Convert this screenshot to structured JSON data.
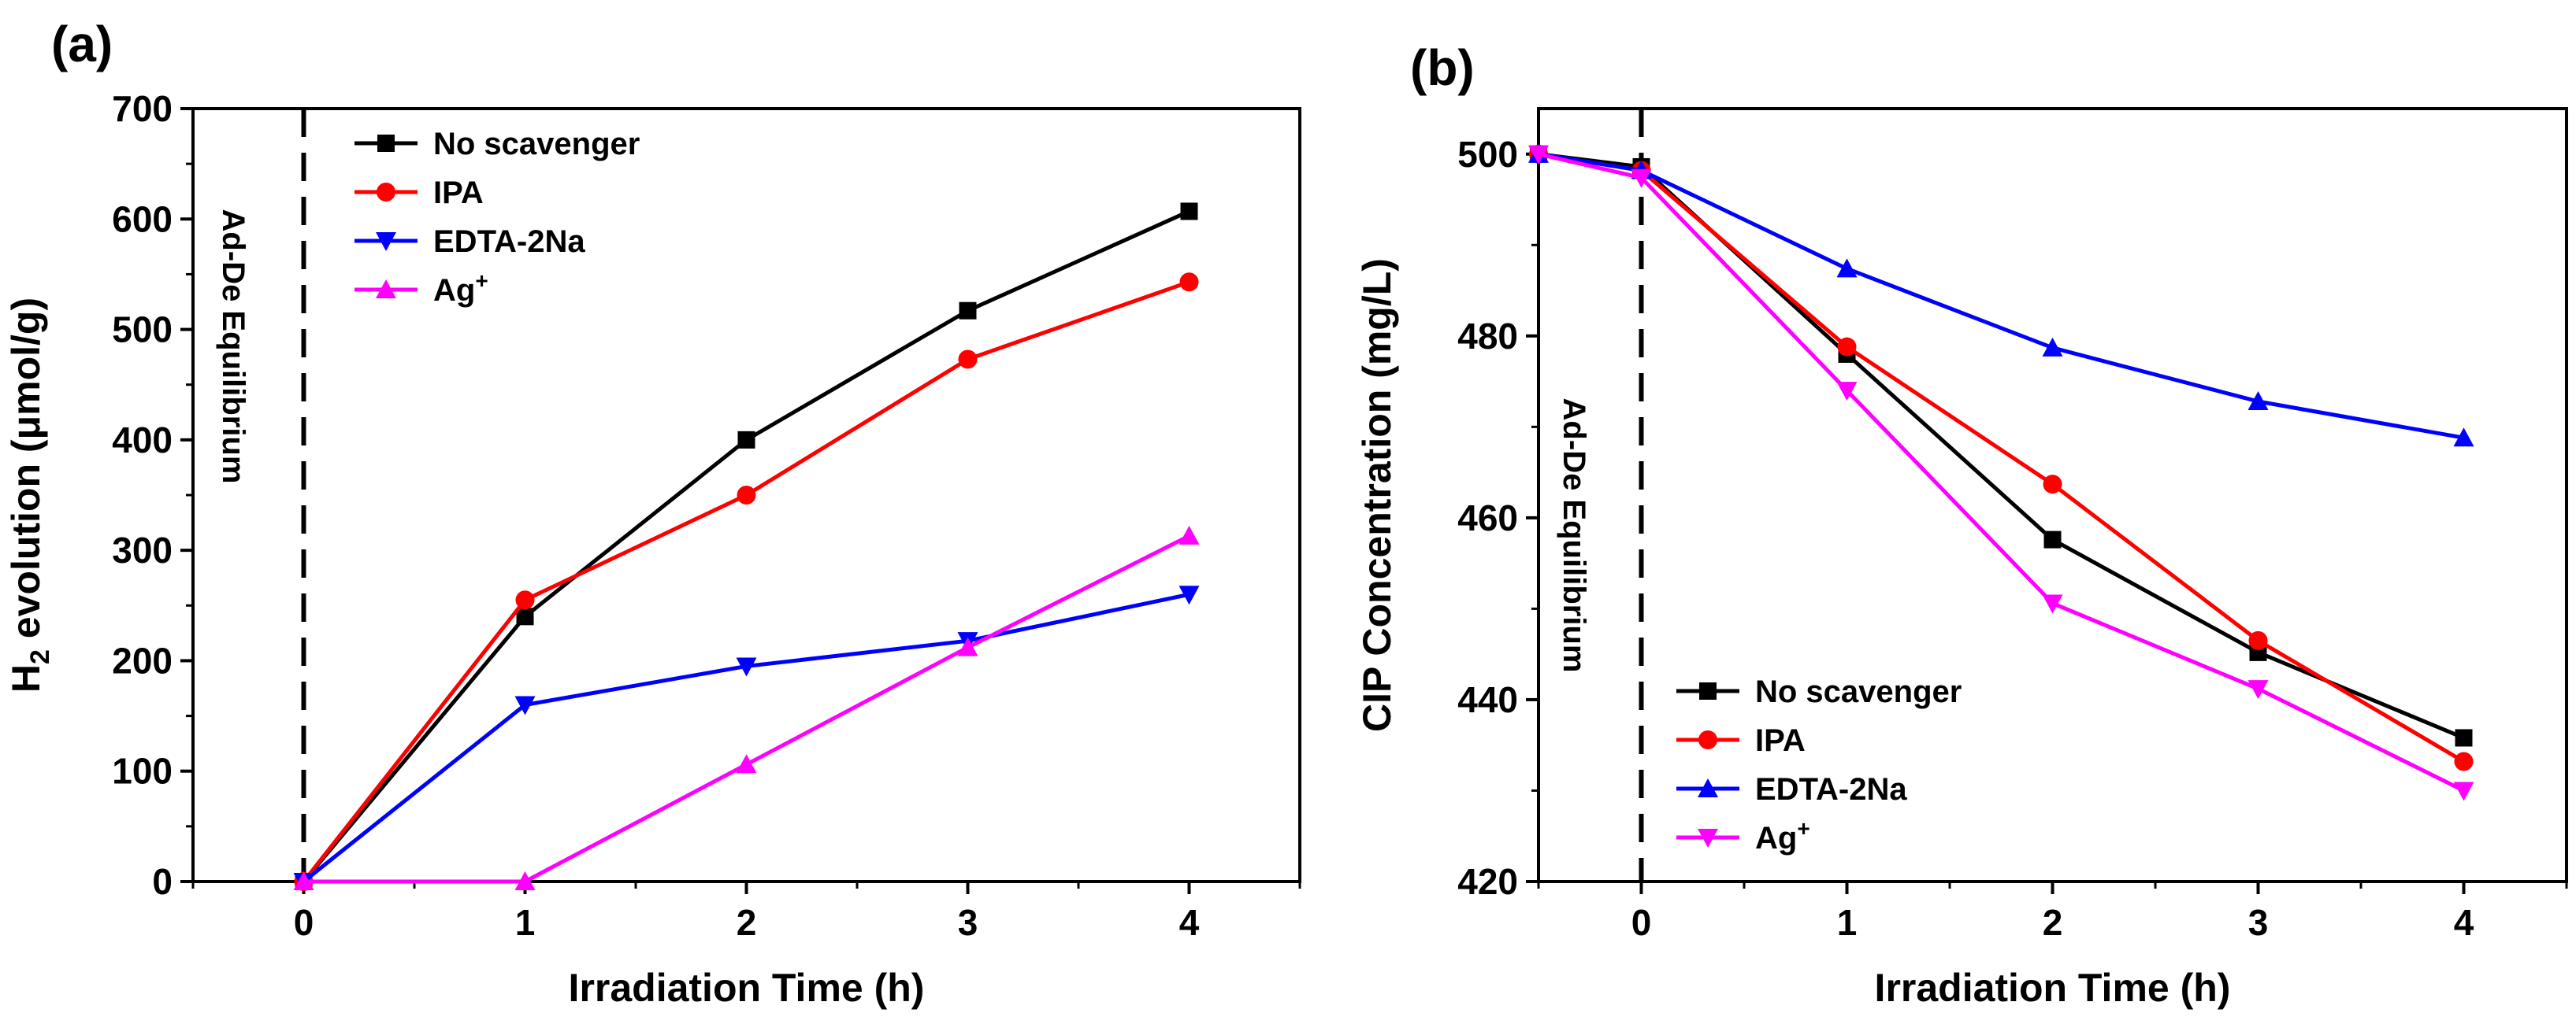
{
  "chart_data": [
    {
      "type": "line",
      "panel_label": "(a)",
      "title": "",
      "xlabel": "Irradiation Time (h)",
      "ylabel_main": "H",
      "ylabel_sub": "2",
      "ylabel_rest": " evolution (μmol/g)",
      "xlim": [
        -0.5,
        4.5
      ],
      "ylim": [
        0,
        700
      ],
      "x_ticks": [
        0,
        1,
        2,
        3,
        4
      ],
      "y_ticks": [
        0,
        100,
        200,
        300,
        400,
        500,
        600,
        700
      ],
      "x_tick_labels": [
        "0",
        "1",
        "2",
        "3",
        "4"
      ],
      "y_tick_labels": [
        "0",
        "100",
        "200",
        "300",
        "400",
        "500",
        "600",
        "700"
      ],
      "annotation": "Ad-De Equilibrium",
      "legend_position": "top-left",
      "series": [
        {
          "name": "No scavenger",
          "name_sup": "",
          "color": "#000000",
          "marker": "square",
          "x": [
            0,
            1,
            2,
            3,
            4
          ],
          "values": [
            0,
            240,
            400,
            517,
            607
          ]
        },
        {
          "name": "IPA",
          "name_sup": "",
          "color": "#ff0000",
          "marker": "circle",
          "x": [
            0,
            1,
            2,
            3,
            4
          ],
          "values": [
            0,
            255,
            350,
            473,
            543
          ]
        },
        {
          "name": "EDTA-2Na",
          "name_sup": "",
          "color": "#0000ff",
          "marker": "triangle-down",
          "x": [
            0,
            1,
            2,
            3,
            4
          ],
          "values": [
            0,
            160,
            195,
            218,
            260
          ]
        },
        {
          "name": "Ag",
          "name_sup": "+",
          "color": "#ff00ff",
          "marker": "triangle-up",
          "x": [
            0,
            1,
            2,
            3,
            4
          ],
          "values": [
            0,
            0,
            106,
            212,
            313
          ]
        }
      ]
    },
    {
      "type": "line",
      "panel_label": "(b)",
      "title": "",
      "xlabel": "Irradiation Time (h)",
      "ylabel_main": "CIP Concentration (mg/L)",
      "ylabel_sub": "",
      "ylabel_rest": "",
      "xlim": [
        -0.5,
        4.5
      ],
      "ylim": [
        420,
        505
      ],
      "x_ticks": [
        0,
        1,
        2,
        3,
        4
      ],
      "y_ticks": [
        420,
        440,
        460,
        480,
        500
      ],
      "x_tick_labels": [
        "0",
        "1",
        "2",
        "3",
        "4"
      ],
      "y_tick_labels": [
        "420",
        "440",
        "460",
        "480",
        "500"
      ],
      "annotation": "Ad-De Equilibrium",
      "legend_position": "bottom-left",
      "series": [
        {
          "name": "No scavenger",
          "name_sup": "",
          "color": "#000000",
          "marker": "square",
          "x": [
            -0.5,
            0,
            1,
            2,
            3,
            4
          ],
          "values": [
            500,
            498.6,
            478,
            457.6,
            445.2,
            435.8
          ]
        },
        {
          "name": "IPA",
          "name_sup": "",
          "color": "#ff0000",
          "marker": "circle",
          "x": [
            -0.5,
            0,
            1,
            2,
            3,
            4
          ],
          "values": [
            500,
            498.2,
            478.8,
            463.7,
            446.5,
            433.2
          ]
        },
        {
          "name": "EDTA-2Na",
          "name_sup": "",
          "color": "#0000ff",
          "marker": "triangle-up",
          "x": [
            -0.5,
            0,
            1,
            2,
            3,
            4
          ],
          "values": [
            500,
            498.2,
            487.4,
            478.7,
            472.8,
            468.8
          ]
        },
        {
          "name": "Ag",
          "name_sup": "+",
          "color": "#ff00ff",
          "marker": "triangle-down",
          "x": [
            -0.5,
            0,
            1,
            2,
            3,
            4
          ],
          "values": [
            500,
            497.4,
            474,
            450.6,
            441.2,
            430
          ]
        }
      ]
    }
  ]
}
